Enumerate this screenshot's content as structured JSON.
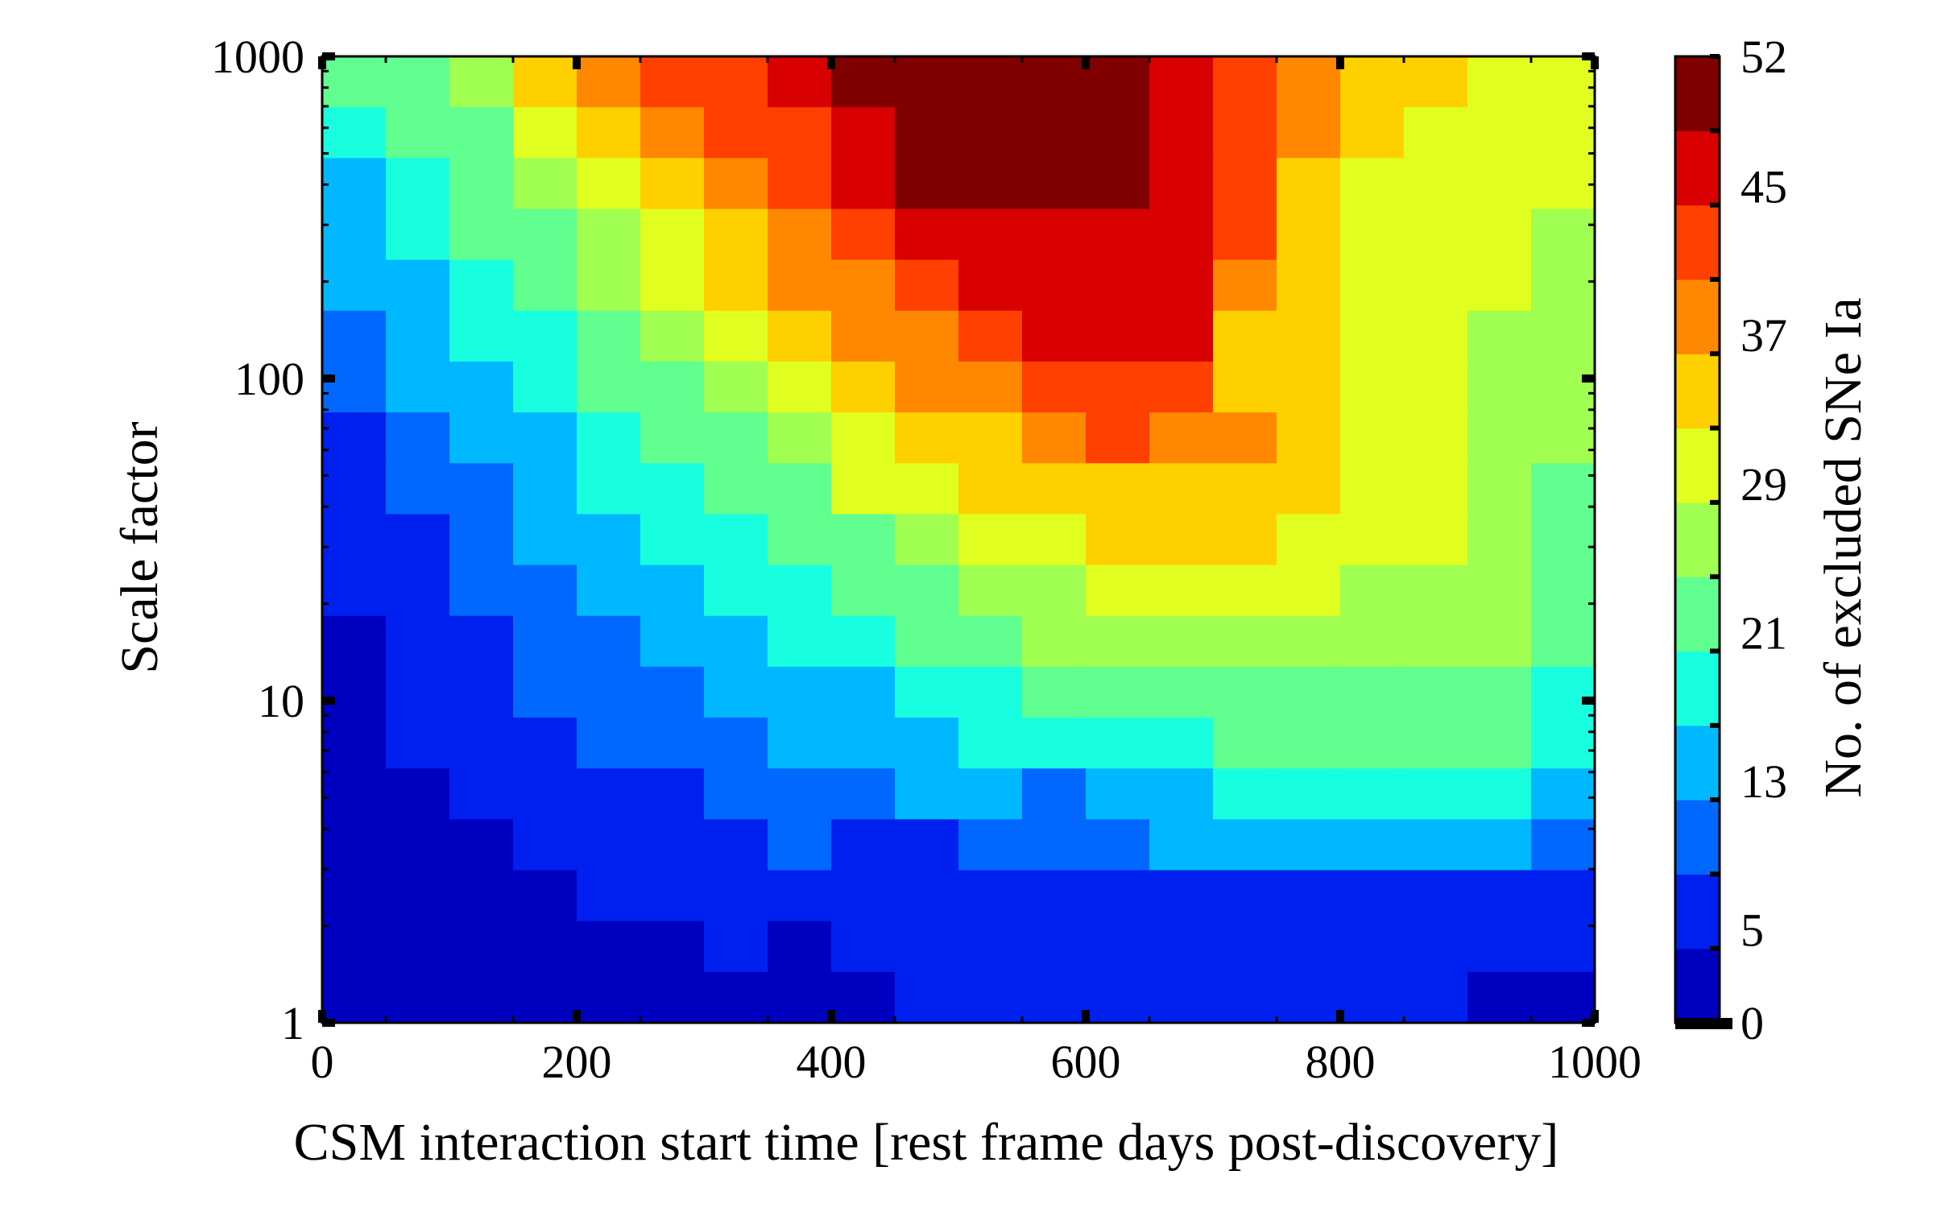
{
  "chart_data": {
    "type": "heatmap",
    "xlabel": "CSM interaction start time [rest frame days post-discovery]",
    "ylabel": "Scale factor",
    "colorbar_label": "No. of excluded SNe Ia",
    "xlim": [
      0,
      1000
    ],
    "ylim": [
      1,
      1000
    ],
    "yscale": "log",
    "x_ticks": [
      0,
      200,
      400,
      600,
      800,
      1000
    ],
    "x_tick_labels": [
      "0",
      "200",
      "400",
      "600",
      "800",
      "1000"
    ],
    "y_ticks": [
      1,
      10,
      100,
      1000
    ],
    "y_tick_labels": [
      "1",
      "10",
      "100",
      "1000"
    ],
    "colorbar_range": [
      0,
      52
    ],
    "colorbar_ticks": [
      0,
      5,
      13,
      21,
      29,
      37,
      45,
      52
    ],
    "colorbar_tick_labels": [
      "0",
      "5",
      "13",
      "21",
      "29",
      "37",
      "45",
      "52"
    ],
    "colorbar_levels": 13,
    "x_bin_width": 50,
    "y_bins_per_decade": 6,
    "colors": [
      "#0000c0",
      "#0020f0",
      "#0068ff",
      "#00b8ff",
      "#18ffe0",
      "#60ff90",
      "#a0ff50",
      "#e0ff20",
      "#ffd000",
      "#ff8800",
      "#ff4000",
      "#d80000",
      "#800000"
    ],
    "grid_rows_top_to_bottom": [
      [
        5,
        5,
        6,
        8,
        9,
        10,
        10,
        11,
        12,
        12,
        12,
        12,
        12,
        11,
        10,
        9,
        8,
        8,
        7,
        7
      ],
      [
        4,
        5,
        5,
        7,
        8,
        9,
        10,
        10,
        11,
        12,
        12,
        12,
        12,
        11,
        10,
        9,
        8,
        7,
        7,
        7
      ],
      [
        3,
        4,
        5,
        6,
        7,
        8,
        9,
        10,
        11,
        12,
        12,
        12,
        12,
        11,
        10,
        8,
        7,
        7,
        7,
        7
      ],
      [
        3,
        4,
        5,
        5,
        6,
        7,
        8,
        9,
        10,
        11,
        11,
        11,
        11,
        11,
        10,
        8,
        7,
        7,
        7,
        6
      ],
      [
        3,
        3,
        4,
        5,
        6,
        7,
        8,
        9,
        9,
        10,
        11,
        11,
        11,
        11,
        9,
        8,
        7,
        7,
        7,
        6
      ],
      [
        2,
        3,
        4,
        4,
        5,
        6,
        7,
        8,
        9,
        9,
        10,
        11,
        11,
        11,
        8,
        8,
        7,
        7,
        6,
        6
      ],
      [
        2,
        3,
        3,
        4,
        5,
        5,
        6,
        7,
        8,
        9,
        9,
        10,
        10,
        10,
        8,
        8,
        7,
        7,
        6,
        6
      ],
      [
        1,
        2,
        3,
        3,
        4,
        5,
        5,
        6,
        7,
        8,
        8,
        9,
        10,
        9,
        9,
        8,
        7,
        7,
        6,
        6
      ],
      [
        1,
        2,
        2,
        3,
        4,
        4,
        5,
        5,
        7,
        7,
        8,
        8,
        8,
        8,
        8,
        8,
        7,
        7,
        6,
        5
      ],
      [
        1,
        1,
        2,
        3,
        3,
        4,
        4,
        5,
        5,
        6,
        7,
        7,
        8,
        8,
        8,
        7,
        7,
        7,
        6,
        5
      ],
      [
        1,
        1,
        2,
        2,
        3,
        3,
        4,
        4,
        5,
        5,
        6,
        6,
        7,
        7,
        7,
        7,
        6,
        6,
        6,
        5
      ],
      [
        0,
        1,
        1,
        2,
        2,
        3,
        3,
        4,
        4,
        5,
        5,
        6,
        6,
        6,
        6,
        6,
        6,
        6,
        6,
        5
      ],
      [
        0,
        1,
        1,
        2,
        2,
        2,
        3,
        3,
        3,
        4,
        4,
        5,
        5,
        5,
        5,
        5,
        5,
        5,
        5,
        4
      ],
      [
        0,
        1,
        1,
        1,
        2,
        2,
        2,
        3,
        3,
        3,
        4,
        4,
        4,
        4,
        5,
        5,
        5,
        5,
        5,
        4
      ],
      [
        0,
        0,
        1,
        1,
        1,
        1,
        2,
        2,
        2,
        3,
        3,
        2,
        3,
        3,
        4,
        4,
        4,
        4,
        4,
        3
      ],
      [
        0,
        0,
        0,
        1,
        1,
        1,
        1,
        2,
        1,
        1,
        2,
        2,
        2,
        3,
        3,
        3,
        3,
        3,
        3,
        2
      ],
      [
        0,
        0,
        0,
        0,
        1,
        1,
        1,
        1,
        1,
        1,
        1,
        1,
        1,
        1,
        1,
        1,
        1,
        1,
        1,
        1
      ],
      [
        0,
        0,
        0,
        0,
        0,
        0,
        1,
        0,
        1,
        1,
        1,
        1,
        1,
        1,
        1,
        1,
        1,
        1,
        1,
        1
      ],
      [
        0,
        0,
        0,
        0,
        0,
        0,
        0,
        0,
        0,
        1,
        1,
        1,
        1,
        1,
        1,
        1,
        1,
        1,
        0,
        0
      ]
    ]
  }
}
